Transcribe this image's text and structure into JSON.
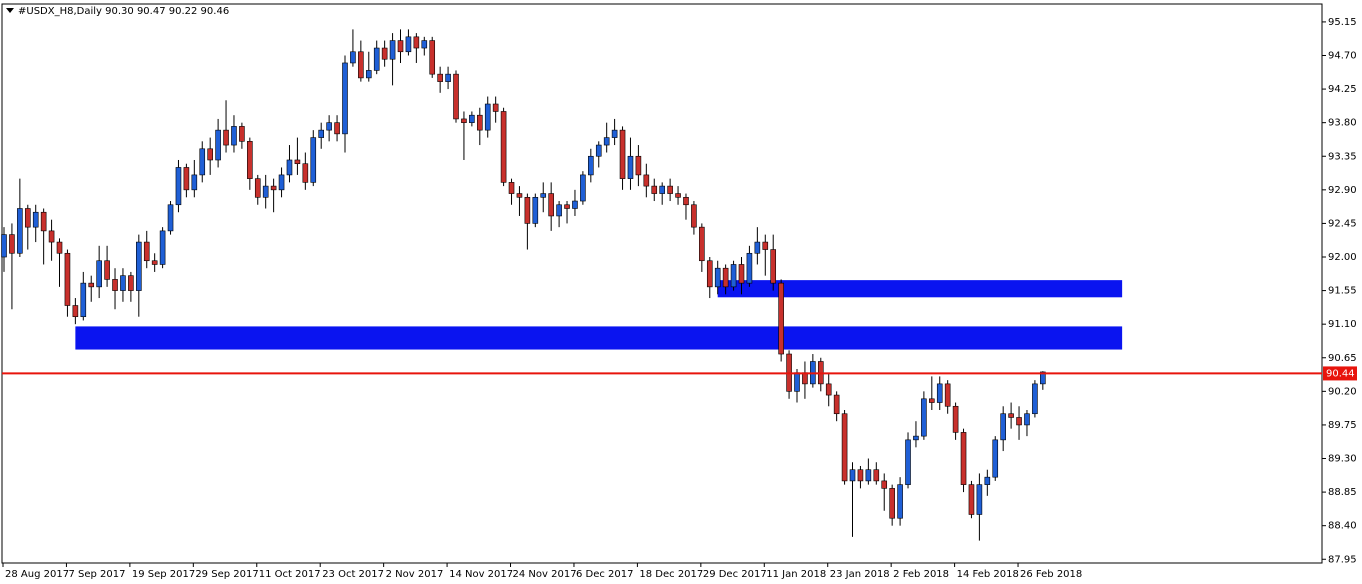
{
  "chart_data": {
    "type": "candlestick",
    "title": "#USDX_H8,Daily  90.30 90.47 90.22 90.46",
    "categories": [
      "28 Aug 2017",
      null,
      null,
      null,
      null,
      null,
      null,
      null,
      "7 Sep 2017",
      null,
      null,
      null,
      null,
      null,
      null,
      null,
      "19 Sep 2017",
      null,
      null,
      null,
      null,
      null,
      null,
      null,
      "29 Sep 2017",
      null,
      null,
      null,
      null,
      null,
      null,
      null,
      "11 Oct 2017",
      null,
      null,
      null,
      null,
      null,
      null,
      null,
      "23 Oct 2017",
      null,
      null,
      null,
      null,
      null,
      null,
      null,
      "2 Nov 2017",
      null,
      null,
      null,
      null,
      null,
      null,
      null,
      "14 Nov 2017",
      null,
      null,
      null,
      null,
      null,
      null,
      null,
      "24 Nov 2017",
      null,
      null,
      null,
      null,
      null,
      null,
      null,
      "6 Dec 2017",
      null,
      null,
      null,
      null,
      null,
      null,
      null,
      "18 Dec 2017",
      null,
      null,
      null,
      null,
      null,
      null,
      null,
      "29 Dec 2017",
      null,
      null,
      null,
      null,
      null,
      null,
      null,
      "11 Jan 2018",
      null,
      null,
      null,
      null,
      null,
      null,
      null,
      "23 Jan 2018",
      null,
      null,
      null,
      null,
      null,
      null,
      null,
      "2 Feb 2018",
      null,
      null,
      null,
      null,
      null,
      null,
      null,
      "14 Feb 2018",
      null,
      null,
      null,
      null,
      null,
      null,
      null,
      "26 Feb 2018",
      null,
      null,
      null
    ],
    "open": [
      92.0,
      92.3,
      92.05,
      92.65,
      92.4,
      92.6,
      92.35,
      92.2,
      92.05,
      91.35,
      91.2,
      91.65,
      91.6,
      91.95,
      91.7,
      91.55,
      91.75,
      91.55,
      92.2,
      91.95,
      91.9,
      92.35,
      92.7,
      93.2,
      92.9,
      93.1,
      93.45,
      93.3,
      93.7,
      93.5,
      93.75,
      93.55,
      93.05,
      92.8,
      92.95,
      92.9,
      93.1,
      93.3,
      93.25,
      93.0,
      93.6,
      93.7,
      93.8,
      93.65,
      94.6,
      94.75,
      94.4,
      94.5,
      94.8,
      94.65,
      94.9,
      94.75,
      94.95,
      94.8,
      94.9,
      94.45,
      94.35,
      94.45,
      93.85,
      93.8,
      93.9,
      93.7,
      94.05,
      93.95,
      93.0,
      92.85,
      92.8,
      92.45,
      92.8,
      92.85,
      92.55,
      92.7,
      92.65,
      92.75,
      93.1,
      93.35,
      93.5,
      93.6,
      93.7,
      93.05,
      93.35,
      93.1,
      92.95,
      92.85,
      92.95,
      92.85,
      92.8,
      92.7,
      92.4,
      91.95,
      91.6,
      91.85,
      91.6,
      91.9,
      91.65,
      92.05,
      92.2,
      92.1,
      91.65,
      90.7,
      90.2,
      90.45,
      90.3,
      90.6,
      90.3,
      90.15,
      89.9,
      89.0,
      89.15,
      89.0,
      89.15,
      89.0,
      88.9,
      88.5,
      88.95,
      89.55,
      89.6,
      90.1,
      90.05,
      90.3,
      90.0,
      89.65,
      88.95,
      88.55,
      88.95,
      89.05,
      89.55,
      89.9,
      89.85,
      89.75,
      89.9,
      90.3
    ],
    "high": [
      92.4,
      92.45,
      93.05,
      92.7,
      92.7,
      92.65,
      92.5,
      92.25,
      92.1,
      91.45,
      91.8,
      91.75,
      92.15,
      92.15,
      91.85,
      91.85,
      91.8,
      92.3,
      92.35,
      92.05,
      92.4,
      92.75,
      93.3,
      93.25,
      93.3,
      93.55,
      93.6,
      93.85,
      94.1,
      93.9,
      93.8,
      93.6,
      93.1,
      93.1,
      93.05,
      93.2,
      93.5,
      93.6,
      93.4,
      93.7,
      93.8,
      93.9,
      93.9,
      94.7,
      95.05,
      94.9,
      94.75,
      94.9,
      94.9,
      95.0,
      95.05,
      95.05,
      95.0,
      94.95,
      94.95,
      94.55,
      94.55,
      94.5,
      93.95,
      93.95,
      94.0,
      94.15,
      94.15,
      94.0,
      93.05,
      92.95,
      92.85,
      92.85,
      93.0,
      93.0,
      92.75,
      92.75,
      92.9,
      93.15,
      93.45,
      93.55,
      93.8,
      93.85,
      93.75,
      93.6,
      93.5,
      93.25,
      93.05,
      93.0,
      93.05,
      92.95,
      92.85,
      92.75,
      92.45,
      92.0,
      91.95,
      91.9,
      91.95,
      92.0,
      92.15,
      92.4,
      92.3,
      92.3,
      91.7,
      90.75,
      90.5,
      90.6,
      90.7,
      90.65,
      90.45,
      90.2,
      89.95,
      89.25,
      89.2,
      89.3,
      89.25,
      89.1,
      88.95,
      89.05,
      89.65,
      89.8,
      90.2,
      90.4,
      90.4,
      90.35,
      90.05,
      89.7,
      89.0,
      89.1,
      89.15,
      89.6,
      90.0,
      90.05,
      90.0,
      89.95,
      90.35,
      90.47
    ],
    "low": [
      91.8,
      91.3,
      92.0,
      92.1,
      92.2,
      91.9,
      91.95,
      91.6,
      91.2,
      91.1,
      91.15,
      91.4,
      91.45,
      91.6,
      91.3,
      91.4,
      91.4,
      91.2,
      91.85,
      91.8,
      91.85,
      92.3,
      92.6,
      92.8,
      92.8,
      93.0,
      93.1,
      93.2,
      93.4,
      93.4,
      93.45,
      92.9,
      92.7,
      92.65,
      92.6,
      92.8,
      93.0,
      93.1,
      92.9,
      92.95,
      93.45,
      93.55,
      93.55,
      93.4,
      94.55,
      94.35,
      94.35,
      94.45,
      94.55,
      94.3,
      94.6,
      94.7,
      94.6,
      94.7,
      94.4,
      94.2,
      94.25,
      93.8,
      93.3,
      93.75,
      93.5,
      93.6,
      93.8,
      92.95,
      92.7,
      92.55,
      92.1,
      92.4,
      92.6,
      92.35,
      92.4,
      92.45,
      92.55,
      92.7,
      93.0,
      93.2,
      93.4,
      93.5,
      92.9,
      92.9,
      92.95,
      92.8,
      92.75,
      92.7,
      92.75,
      92.7,
      92.5,
      92.3,
      91.8,
      91.45,
      91.5,
      91.5,
      91.55,
      91.5,
      91.6,
      91.9,
      91.75,
      91.55,
      90.6,
      90.1,
      90.05,
      90.1,
      90.25,
      90.2,
      90.0,
      89.8,
      88.95,
      88.25,
      88.9,
      88.95,
      88.95,
      88.6,
      88.4,
      88.4,
      88.9,
      89.45,
      89.55,
      89.95,
      89.95,
      89.9,
      89.55,
      88.85,
      88.5,
      88.2,
      88.8,
      89.0,
      89.4,
      89.7,
      89.55,
      89.6,
      89.85,
      90.22
    ],
    "close": [
      92.3,
      92.05,
      92.65,
      92.4,
      92.6,
      92.35,
      92.2,
      92.05,
      91.35,
      91.2,
      91.65,
      91.6,
      91.95,
      91.7,
      91.55,
      91.75,
      91.55,
      92.2,
      91.95,
      91.9,
      92.35,
      92.7,
      93.2,
      92.9,
      93.1,
      93.45,
      93.3,
      93.7,
      93.5,
      93.75,
      93.55,
      93.05,
      92.8,
      92.95,
      92.9,
      93.1,
      93.3,
      93.25,
      93.0,
      93.6,
      93.7,
      93.8,
      93.65,
      94.6,
      94.75,
      94.4,
      94.5,
      94.8,
      94.65,
      94.9,
      94.75,
      94.95,
      94.8,
      94.9,
      94.45,
      94.35,
      94.45,
      93.85,
      93.8,
      93.9,
      93.7,
      94.05,
      93.95,
      93.0,
      92.85,
      92.8,
      92.45,
      92.8,
      92.85,
      92.55,
      92.7,
      92.65,
      92.75,
      93.1,
      93.35,
      93.5,
      93.6,
      93.7,
      93.05,
      93.35,
      93.1,
      92.95,
      92.85,
      92.95,
      92.85,
      92.8,
      92.7,
      92.4,
      91.95,
      91.6,
      91.85,
      91.6,
      91.9,
      91.65,
      92.05,
      92.2,
      92.1,
      91.65,
      90.7,
      90.2,
      90.45,
      90.3,
      90.6,
      90.3,
      90.15,
      89.9,
      89.0,
      89.15,
      89.0,
      89.15,
      89.0,
      88.9,
      88.5,
      88.95,
      89.55,
      89.6,
      90.1,
      90.05,
      90.3,
      90.0,
      89.65,
      88.95,
      88.55,
      88.95,
      89.05,
      89.55,
      89.9,
      89.85,
      89.75,
      89.9,
      90.3,
      90.46
    ],
    "up_color": "#1f5fd6",
    "down_color": "#c8302c",
    "zones": [
      {
        "low": 91.46,
        "high": 91.69,
        "start": 90,
        "end": 141,
        "color": "#0a14f0"
      },
      {
        "low": 90.76,
        "high": 91.07,
        "start": 9,
        "end": 141,
        "color": "#0a14f0"
      }
    ],
    "price_line": {
      "value": 90.44,
      "color": "#e8140c"
    },
    "ylim": [
      87.9,
      95.39
    ],
    "yticks": [
      {
        "value": 87.95,
        "label": "87.95"
      },
      {
        "value": 88.4,
        "label": "88.40"
      },
      88.85,
      {
        "value": 89.3,
        "label": "89.30"
      },
      89.75,
      {
        "value": 90.2,
        "label": "90.20"
      },
      90.65,
      {
        "value": 91.1,
        "label": "91.10"
      },
      91.55,
      {
        "value": 92.0,
        "label": "92.00"
      },
      92.45,
      {
        "value": 92.9,
        "label": "92.90"
      },
      93.35,
      {
        "value": 93.8,
        "label": "93.80"
      },
      94.25,
      {
        "value": 94.7,
        "label": "94.70"
      },
      95.15
    ]
  }
}
